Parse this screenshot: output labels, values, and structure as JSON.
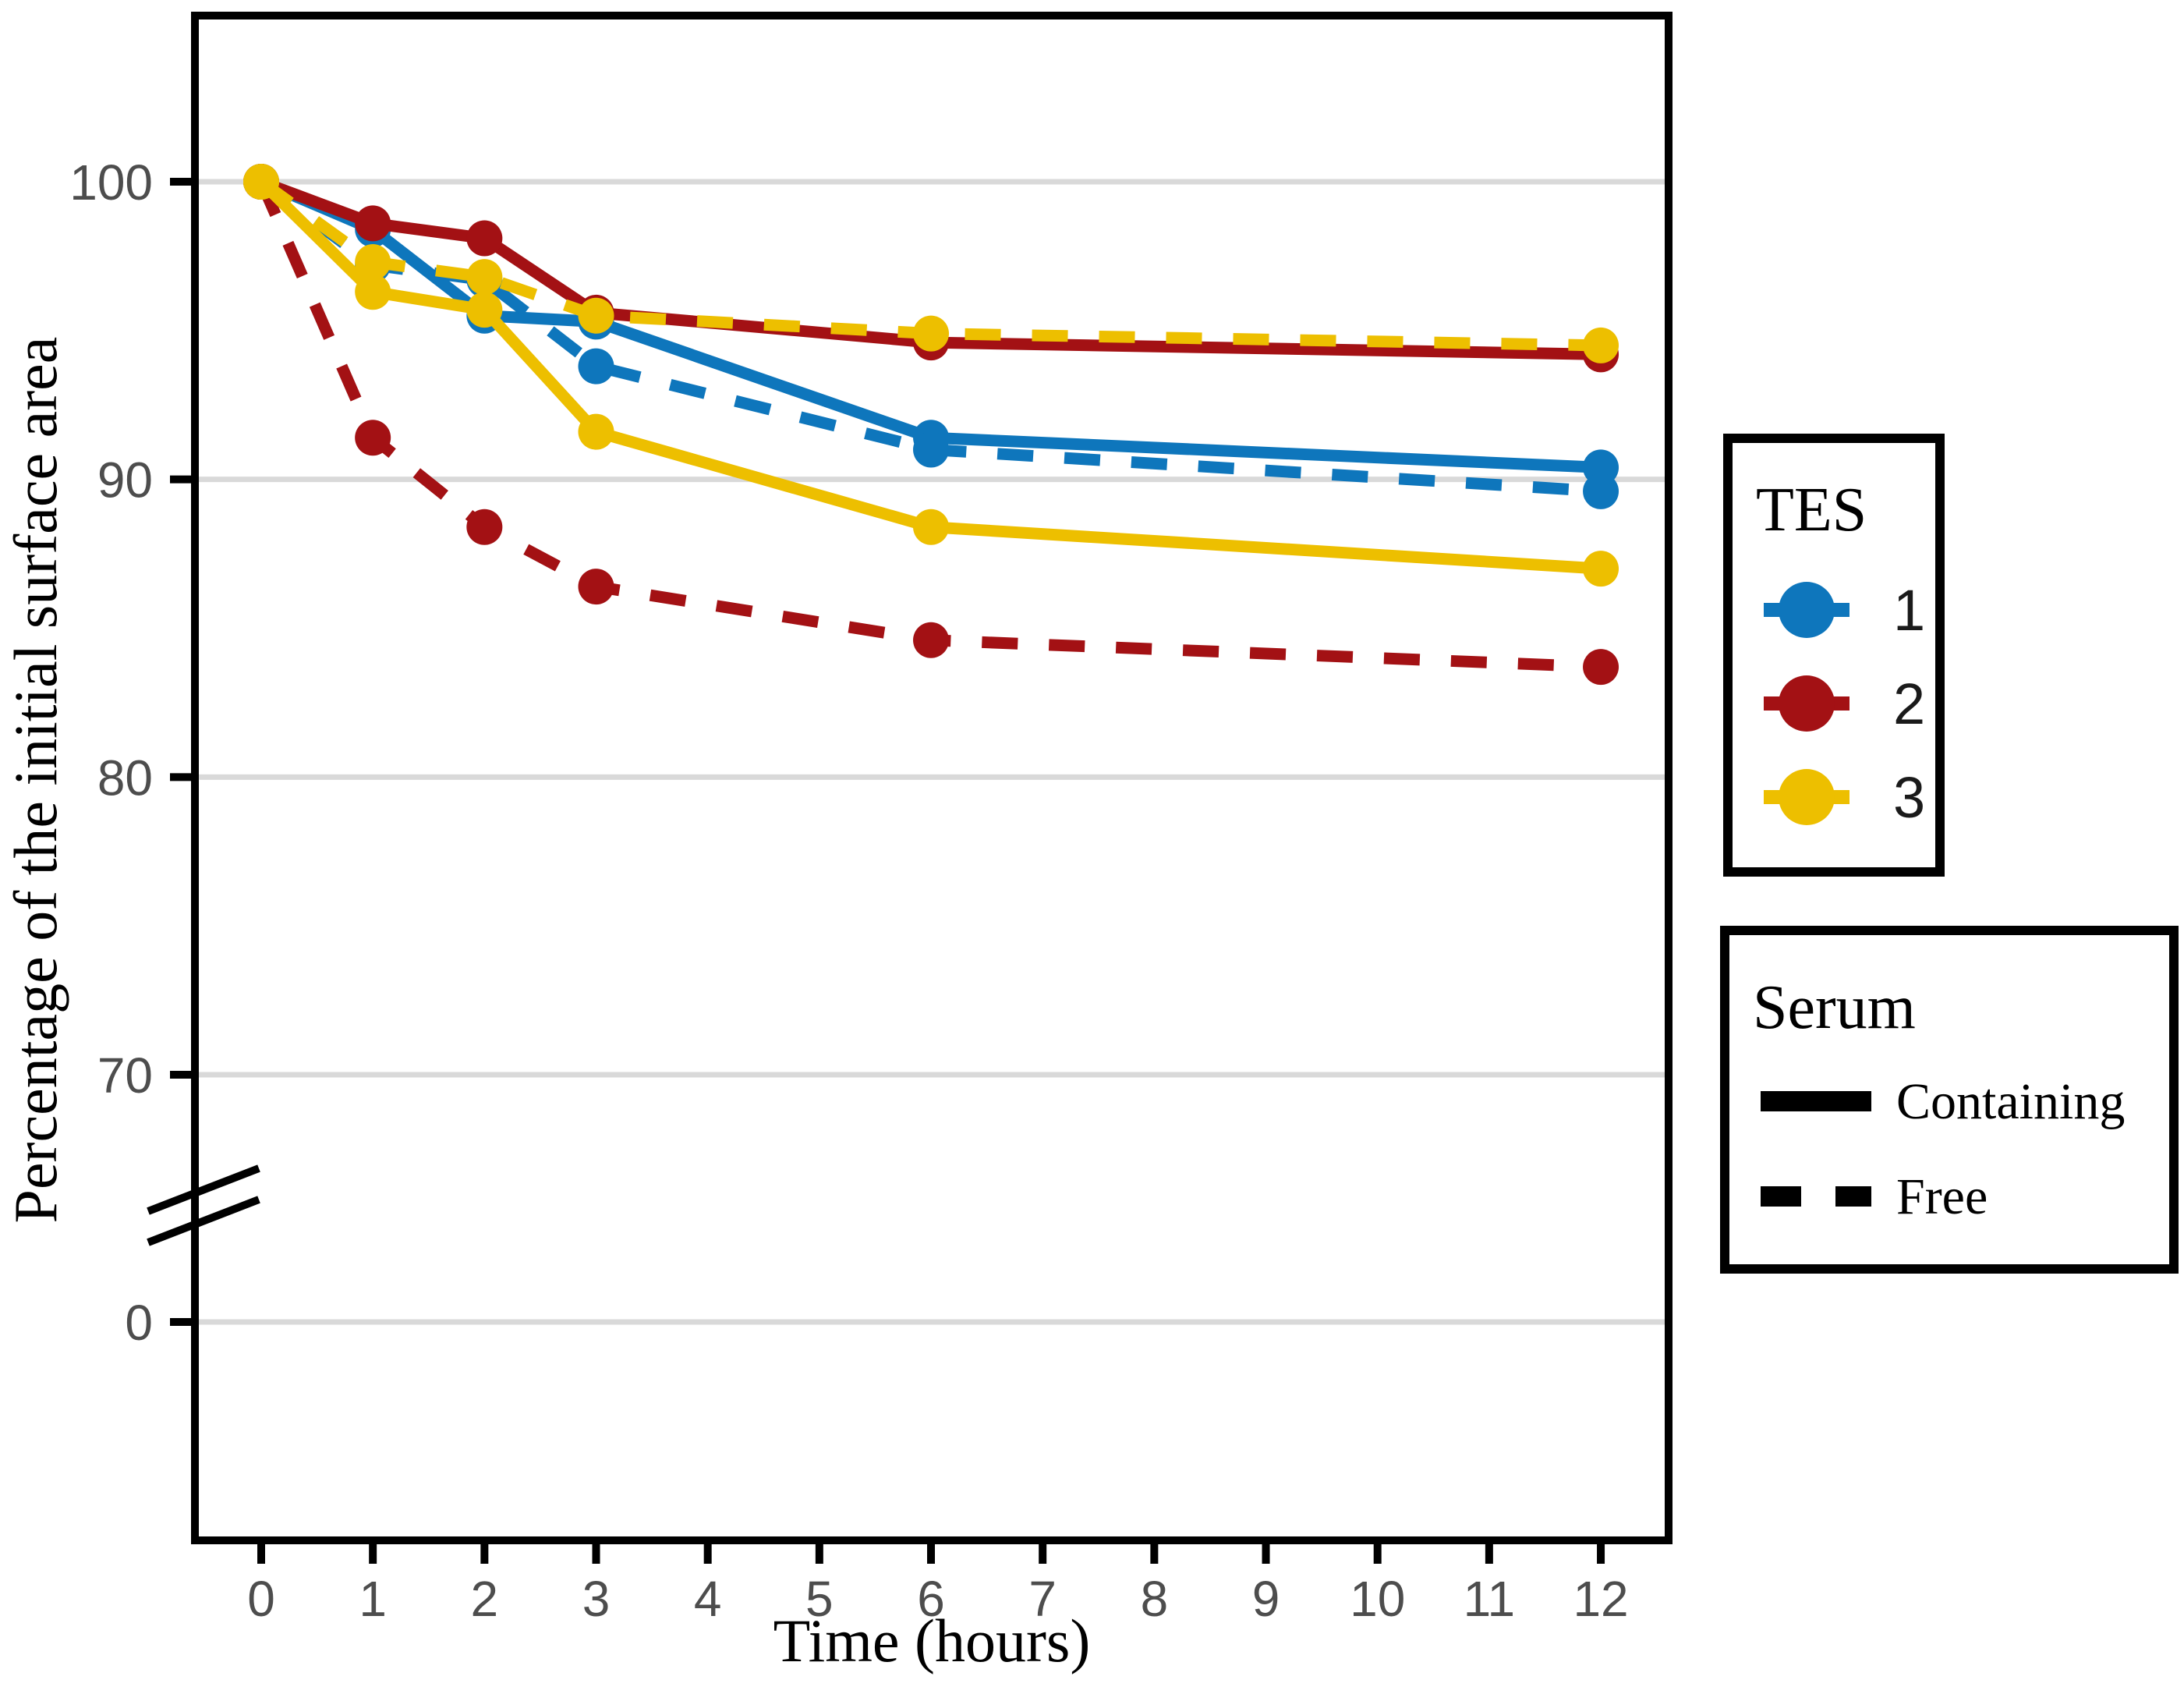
{
  "chart_data": {
    "type": "line",
    "title": "",
    "xlabel": "Time (hours)",
    "ylabel": "Percentage of the initial surface area",
    "x": [
      0,
      1,
      2,
      3,
      6,
      12
    ],
    "x_ticks": [
      "0",
      "1",
      "2",
      "3",
      "4",
      "5",
      "6",
      "7",
      "8",
      "9",
      "10",
      "11",
      "12"
    ],
    "y_ticks": [
      "100",
      "90",
      "80",
      "70",
      "0"
    ],
    "y_axis_break": true,
    "ylim_upper_segment": [
      70,
      100
    ],
    "grid": "horizontal-only",
    "legend_position": "right",
    "series": [
      {
        "id": "tes1-containing",
        "tes": "1",
        "serum": "Containing",
        "color": "#0E76BC",
        "line": "solid",
        "values": [
          100,
          98.4,
          95.5,
          95.3,
          91.4,
          90.4
        ]
      },
      {
        "id": "tes1-free",
        "tes": "1",
        "serum": "Free",
        "color": "#0E76BC",
        "line": "dashed",
        "values": [
          100,
          97.2,
          96.7,
          93.8,
          91.0,
          89.6
        ]
      },
      {
        "id": "tes2-containing",
        "tes": "2",
        "serum": "Containing",
        "color": "#A31114",
        "line": "solid",
        "values": [
          100,
          98.6,
          98.1,
          95.6,
          94.6,
          94.2
        ]
      },
      {
        "id": "tes2-free",
        "tes": "2",
        "serum": "Free",
        "color": "#A31114",
        "line": "dashed",
        "values": [
          100,
          91.4,
          88.4,
          86.4,
          84.6,
          83.7
        ]
      },
      {
        "id": "tes3-containing",
        "tes": "3",
        "serum": "Containing",
        "color": "#EDBF00",
        "line": "solid",
        "values": [
          100,
          96.3,
          95.7,
          91.6,
          88.4,
          87.0
        ]
      },
      {
        "id": "tes3-free",
        "tes": "3",
        "serum": "Free",
        "color": "#EDBF00",
        "line": "dashed",
        "values": [
          100,
          97.3,
          96.8,
          95.5,
          94.9,
          94.5
        ]
      }
    ]
  },
  "legend_tes": {
    "title": "TES",
    "items": [
      {
        "label": "1",
        "color": "#0E76BC"
      },
      {
        "label": "2",
        "color": "#A31114"
      },
      {
        "label": "3",
        "color": "#EDBF00"
      }
    ]
  },
  "legend_serum": {
    "title": "Serum",
    "items": [
      {
        "label": "Containing",
        "style": "solid"
      },
      {
        "label": "Free",
        "style": "dashed"
      }
    ]
  },
  "colors": {
    "gridline": "#d9d9d9",
    "axis": "#000000",
    "tick_label": "#4d4d4d",
    "background": "#ffffff"
  }
}
